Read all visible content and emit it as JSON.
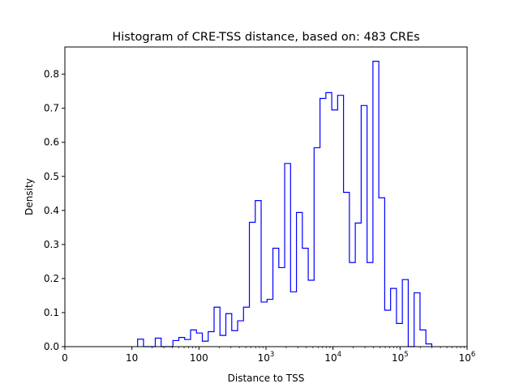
{
  "chart_data": {
    "type": "histogram",
    "title": "Histogram of CRE-TSS distance, based on: 483 CREs",
    "xlabel": "Distance to TSS",
    "ylabel": "Density",
    "xscale": "symlog",
    "xlim": [
      0,
      1000000
    ],
    "ylim": [
      0,
      0.88
    ],
    "x_ticks": [
      {
        "value": 0,
        "base": "0",
        "exp": ""
      },
      {
        "value": 10,
        "base": "10",
        "exp": ""
      },
      {
        "value": 100,
        "base": "100",
        "exp": ""
      },
      {
        "value": 1000,
        "base": "10",
        "exp": "3"
      },
      {
        "value": 10000,
        "base": "10",
        "exp": "4"
      },
      {
        "value": 100000,
        "base": "10",
        "exp": "5"
      },
      {
        "value": 1000000,
        "base": "10",
        "exp": "6"
      }
    ],
    "y_ticks": [
      "0.0",
      "0.1",
      "0.2",
      "0.3",
      "0.4",
      "0.5",
      "0.6",
      "0.7",
      "0.8"
    ],
    "bin_edges_log10_range": [
      1.085,
      5.473
    ],
    "bins": 50,
    "histtype": "step",
    "color": "#0000ff",
    "values": [
      0.022,
      0,
      0,
      0.025,
      0,
      0,
      0.018,
      0.027,
      0.021,
      0.049,
      0.04,
      0.016,
      0.044,
      0.116,
      0.033,
      0.097,
      0.047,
      0.076,
      0.116,
      0.365,
      0.429,
      0.131,
      0.139,
      0.289,
      0.232,
      0.538,
      0.161,
      0.394,
      0.289,
      0.195,
      0.584,
      0.729,
      0.746,
      0.695,
      0.738,
      0.453,
      0.247,
      0.363,
      0.708,
      0.247,
      0.838,
      0.437,
      0.107,
      0.171,
      0.068,
      0.197,
      0,
      0.158,
      0.049,
      0.008
    ]
  }
}
